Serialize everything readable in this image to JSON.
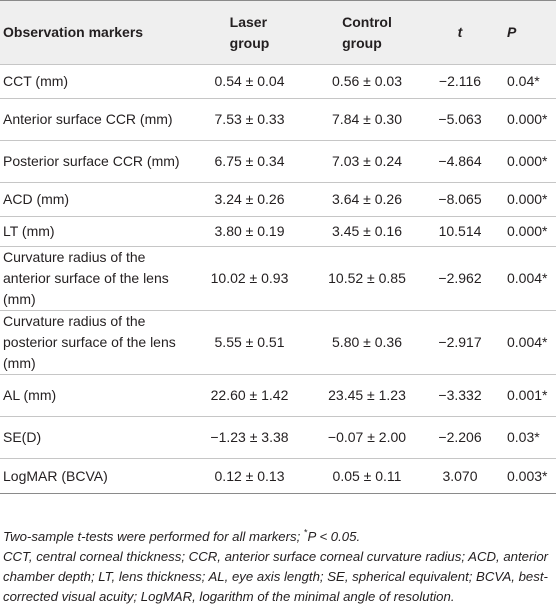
{
  "table": {
    "headers": {
      "marker": "Observation markers",
      "laser_line1": "Laser",
      "laser_line2": "group",
      "control_line1": "Control",
      "control_line2": "group",
      "t": "t",
      "p": "P"
    },
    "rows": [
      {
        "marker": "CCT (mm)",
        "laser": "0.54 ± 0.04",
        "control": "0.56 ± 0.03",
        "t": "−2.116",
        "p": "0.04*"
      },
      {
        "marker": "Anterior surface CCR (mm)",
        "laser": "7.53 ± 0.33",
        "control": "7.84 ± 0.30",
        "t": "−5.063",
        "p": "0.000*"
      },
      {
        "marker": "Posterior surface CCR (mm)",
        "laser": "6.75 ± 0.34",
        "control": "7.03 ± 0.24",
        "t": "−4.864",
        "p": "0.000*"
      },
      {
        "marker": "ACD (mm)",
        "laser": "3.24 ± 0.26",
        "control": "3.64 ± 0.26",
        "t": "−8.065",
        "p": "0.000*"
      },
      {
        "marker": "LT (mm)",
        "laser": "3.80 ± 0.19",
        "control": "3.45 ± 0.16",
        "t": "10.514",
        "p": "0.000*"
      },
      {
        "marker": "Curvature radius of the anterior surface of the lens (mm)",
        "laser": "10.02 ± 0.93",
        "control": "10.52 ± 0.85",
        "t": "−2.962",
        "p": "0.004*"
      },
      {
        "marker": "Curvature radius of the posterior surface of the lens (mm)",
        "laser": "5.55 ± 0.51",
        "control": "5.80 ± 0.36",
        "t": "−2.917",
        "p": "0.004*"
      },
      {
        "marker": "AL (mm)",
        "laser": "22.60 ± 1.42",
        "control": "23.45 ± 1.23",
        "t": "−3.332",
        "p": "0.001*"
      },
      {
        "marker": "SE(D)",
        "laser": "−1.23 ± 3.38",
        "control": "−0.07 ± 2.00",
        "t": "−2.206",
        "p": "0.03*"
      },
      {
        "marker": "LogMAR (BCVA)",
        "laser": "0.12 ± 0.13",
        "control": "0.05 ± 0.11",
        "t": "3.070",
        "p": "0.003*"
      }
    ]
  },
  "footnotes": {
    "line1_pre": "Two-sample t-tests were performed for all markers; ",
    "line1_star": "*",
    "line1_post": "P < 0.05.",
    "line2": "CCT, central corneal thickness; CCR, anterior surface corneal curvature radius; ACD, anterior chamber depth; LT, lens thickness; AL, eye axis length; SE, spherical equivalent; BCVA, best-corrected visual acuity; LogMAR, logarithm of the minimal angle of resolution."
  }
}
